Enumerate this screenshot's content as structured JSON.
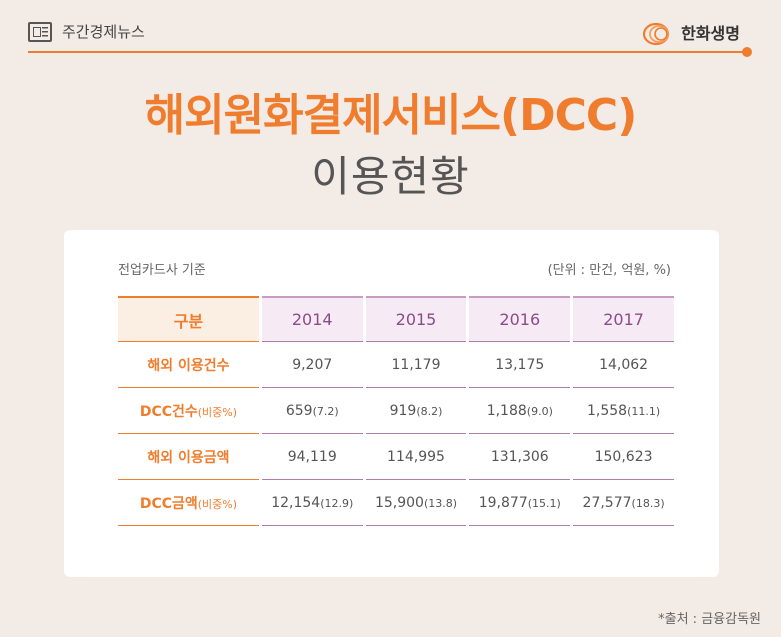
{
  "header": {
    "section_label": "주간경제뉴스",
    "brand_name": "한화생명"
  },
  "title": {
    "main": "해외원화결제서비스(DCC)",
    "sub": "이용현황"
  },
  "table_meta": {
    "basis": "전업카드사 기준",
    "unit": "(단위 : 만건, 억원, %)"
  },
  "table": {
    "corner": "구분",
    "years": [
      "2014",
      "2015",
      "2016",
      "2017"
    ],
    "rows": [
      {
        "label": "해외 이용건수",
        "label_note": "",
        "cells": [
          {
            "value": "9,207",
            "note": ""
          },
          {
            "value": "11,179",
            "note": ""
          },
          {
            "value": "13,175",
            "note": ""
          },
          {
            "value": "14,062",
            "note": ""
          }
        ]
      },
      {
        "label": "DCC건수",
        "label_note": "(비중%)",
        "cells": [
          {
            "value": "659",
            "note": "(7.2)"
          },
          {
            "value": "919",
            "note": "(8.2)"
          },
          {
            "value": "1,188",
            "note": "(9.0)"
          },
          {
            "value": "1,558",
            "note": "(11.1)"
          }
        ]
      },
      {
        "label": "해외 이용금액",
        "label_note": "",
        "cells": [
          {
            "value": "94,119",
            "note": ""
          },
          {
            "value": "114,995",
            "note": ""
          },
          {
            "value": "131,306",
            "note": ""
          },
          {
            "value": "150,623",
            "note": ""
          }
        ]
      },
      {
        "label": "DCC금액",
        "label_note": "(비중%)",
        "cells": [
          {
            "value": "12,154",
            "note": "(12.9)"
          },
          {
            "value": "15,900",
            "note": "(13.8)"
          },
          {
            "value": "19,877",
            "note": "(15.1)"
          },
          {
            "value": "27,577",
            "note": "(18.3)"
          }
        ]
      }
    ]
  },
  "source": "*출처 : 금융감독원",
  "colors": {
    "accent": "#ef7d2d",
    "purple": "#8a4c8a",
    "background": "#f3ebe6"
  },
  "icons": [
    "newspaper-icon",
    "hanwha-logo-icon"
  ]
}
